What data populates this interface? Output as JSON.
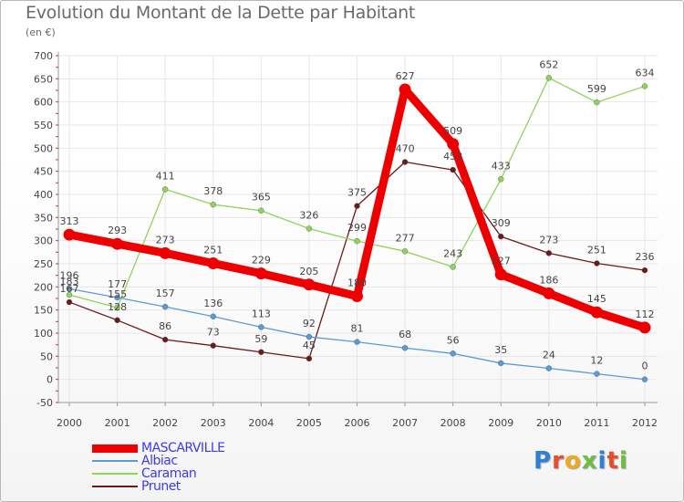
{
  "title": "Evolution du Montant de la Dette par Habitant",
  "subtitle": "(en €)",
  "logo": {
    "text": "Proxiti",
    "colors": [
      "#2f7fd8",
      "#e84c2a",
      "#f2a81d",
      "#6cbf3c",
      "#2f7fd8",
      "#e84c2a",
      "#6cbf3c"
    ]
  },
  "chart_data": {
    "type": "line",
    "x": [
      "2000",
      "2001",
      "2002",
      "2003",
      "2004",
      "2005",
      "2006",
      "2007",
      "2008",
      "2009",
      "2010",
      "2011",
      "2012"
    ],
    "ylim": [
      -50,
      700
    ],
    "yticks": [
      -50,
      0,
      50,
      100,
      150,
      200,
      250,
      300,
      350,
      400,
      450,
      500,
      550,
      600,
      650,
      700
    ],
    "grid": true,
    "legend_position": "bottom-left",
    "series": [
      {
        "name": "Prunet",
        "color": "#6b1a1a",
        "width": 1.3,
        "marker": 3,
        "values": [
          167,
          128,
          86,
          73,
          59,
          45,
          375,
          470,
          453,
          309,
          273,
          251,
          236
        ]
      },
      {
        "name": "Caraman",
        "color": "#8fd45a",
        "width": 1.3,
        "marker": 3,
        "values": [
          183,
          155,
          411,
          378,
          365,
          326,
          299,
          277,
          243,
          433,
          652,
          599,
          634
        ]
      },
      {
        "name": "Albiac",
        "color": "#5b9bd5",
        "width": 1.3,
        "marker": 3,
        "values": [
          196,
          177,
          157,
          136,
          113,
          92,
          81,
          68,
          56,
          35,
          24,
          12,
          0
        ]
      },
      {
        "name": "MASCARVILLE",
        "color": "#ee0000",
        "width": 9,
        "marker": 6.5,
        "values": [
          313,
          293,
          273,
          251,
          229,
          205,
          180,
          627,
          509,
          227,
          186,
          145,
          112
        ]
      }
    ],
    "legend": [
      {
        "name": "MASCARVILLE",
        "color": "#ee0000",
        "width": 9
      },
      {
        "name": "Albiac",
        "color": "#5b9bd5",
        "width": 2
      },
      {
        "name": "Caraman",
        "color": "#8fd45a",
        "width": 2
      },
      {
        "name": "Prunet",
        "color": "#6b1a1a",
        "width": 2
      }
    ]
  }
}
